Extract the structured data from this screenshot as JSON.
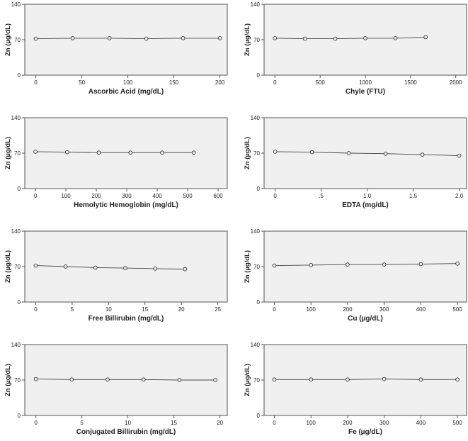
{
  "chart_data": [
    {
      "type": "line",
      "xlabel": "Ascorbic Acid (mg/dL)",
      "ylabel": "Zn (µg/dL)",
      "xlim": [
        -12,
        208
      ],
      "ylim": [
        0,
        140
      ],
      "xticks": [
        0,
        50,
        100,
        150,
        200
      ],
      "yticks": [
        0,
        70,
        140
      ],
      "x": [
        0,
        40,
        80,
        120,
        160,
        200
      ],
      "values": [
        72,
        73,
        73,
        72,
        73,
        73
      ]
    },
    {
      "type": "line",
      "xlabel": "Chyle (FTU)",
      "ylabel": "Zn (µg/dL)",
      "xlim": [
        -120,
        2120
      ],
      "ylim": [
        0,
        140
      ],
      "xticks": [
        0,
        500,
        1000,
        1500,
        2000
      ],
      "xtick_labels": [
        "0",
        "500",
        "1000",
        "1500",
        "2000"
      ],
      "yticks": [
        0,
        70,
        140
      ],
      "x": [
        0,
        333,
        667,
        1000,
        1333,
        1667
      ],
      "values": [
        73,
        72,
        72,
        73,
        73,
        75
      ]
    },
    {
      "type": "line",
      "xlabel": "Hemolytic Hemoglobin (mg/dL)",
      "ylabel": "Zn (µg/dL)",
      "xlim": [
        -35,
        630
      ],
      "ylim": [
        0,
        140
      ],
      "xticks": [
        0,
        100,
        200,
        300,
        400,
        500,
        600
      ],
      "yticks": [
        0,
        70,
        140
      ],
      "x": [
        0,
        104,
        208,
        312,
        416,
        520
      ],
      "values": [
        73,
        72,
        71,
        71,
        71,
        71
      ]
    },
    {
      "type": "line",
      "xlabel": "EDTA (mg/dL)",
      "ylabel": "Zn (µg/dL)",
      "xlim": [
        -0.12,
        2.08
      ],
      "ylim": [
        0,
        140
      ],
      "xticks": [
        0,
        0.5,
        1.0,
        1.5,
        2.0
      ],
      "xtick_labels": [
        "0",
        ".5",
        "1.0",
        "1.5",
        "2.0"
      ],
      "yticks": [
        0,
        70,
        140
      ],
      "x": [
        0,
        0.4,
        0.8,
        1.2,
        1.6,
        2.0
      ],
      "values": [
        73,
        72,
        70,
        69,
        67,
        65
      ]
    },
    {
      "type": "line",
      "xlabel": "Free Billirubin (mg/dL)",
      "ylabel": "Zn (µg/dL)",
      "xlim": [
        -1.5,
        26.3
      ],
      "ylim": [
        0,
        140
      ],
      "xticks": [
        0,
        5,
        10,
        15,
        20,
        25
      ],
      "yticks": [
        0,
        70,
        140
      ],
      "x": [
        0,
        4.1,
        8.2,
        12.3,
        16.4,
        20.5
      ],
      "values": [
        72,
        70,
        68,
        67,
        66,
        65
      ]
    },
    {
      "type": "line",
      "xlabel": "Cu (µg/dL)",
      "ylabel": "Zn (µg/dL)",
      "xlim": [
        -28,
        525
      ],
      "ylim": [
        0,
        140
      ],
      "xticks": [
        0,
        100,
        200,
        300,
        400,
        500
      ],
      "yticks": [
        0,
        70,
        140
      ],
      "x": [
        0,
        100,
        200,
        300,
        400,
        500
      ],
      "values": [
        72,
        73,
        74,
        74,
        75,
        76
      ]
    },
    {
      "type": "line",
      "xlabel": "Conjugated Billirubin (mg/dL)",
      "ylabel": "Zn (µg/dL)",
      "xlim": [
        -1.2,
        20.8
      ],
      "ylim": [
        0,
        140
      ],
      "xticks": [
        0,
        5,
        10,
        15,
        20
      ],
      "yticks": [
        0,
        70,
        140
      ],
      "x": [
        0,
        3.9,
        7.8,
        11.7,
        15.6,
        19.5
      ],
      "values": [
        72,
        71,
        71,
        71,
        70,
        70
      ]
    },
    {
      "type": "line",
      "xlabel": "Fe (µg/dL)",
      "ylabel": "Zn (µg/dL)",
      "xlim": [
        -28,
        525
      ],
      "ylim": [
        0,
        140
      ],
      "xticks": [
        0,
        100,
        200,
        300,
        400,
        500
      ],
      "yticks": [
        0,
        70,
        140
      ],
      "x": [
        0,
        100,
        200,
        300,
        400,
        500
      ],
      "values": [
        71,
        71,
        71,
        72,
        71,
        71
      ]
    }
  ]
}
